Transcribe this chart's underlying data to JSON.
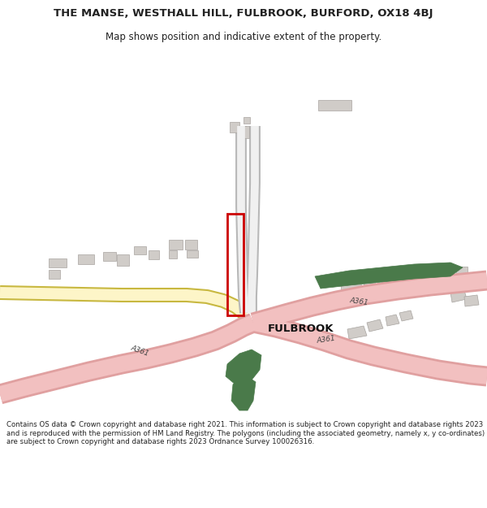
{
  "title": "THE MANSE, WESTHALL HILL, FULBROOK, BURFORD, OX18 4BJ",
  "subtitle": "Map shows position and indicative extent of the property.",
  "footer": "Contains OS data © Crown copyright and database right 2021. This information is subject to Crown copyright and database rights 2023 and is reproduced with the permission of HM Land Registry. The polygons (including the associated geometry, namely x, y co-ordinates) are subject to Crown copyright and database rights 2023 Ordnance Survey 100026316.",
  "bg_color": "#ffffff",
  "map_bg": "#ffffff",
  "road_pink": "#f2c0c0",
  "road_pink_edge": "#e0a0a0",
  "road_yellow": "#f0e080",
  "road_yellow_edge": "#c8b840",
  "road_yellow_fill": "#fdf5c8",
  "road_grey": "#d8d8d8",
  "road_grey_edge": "#b8b8b8",
  "building_fill": "#d0ccc8",
  "building_edge": "#a8a4a0",
  "green_fill": "#4a7a4a",
  "red_color": "#cc0000",
  "text_dark": "#222222",
  "text_grey": "#666666",
  "fulbrook_color": "#111111"
}
